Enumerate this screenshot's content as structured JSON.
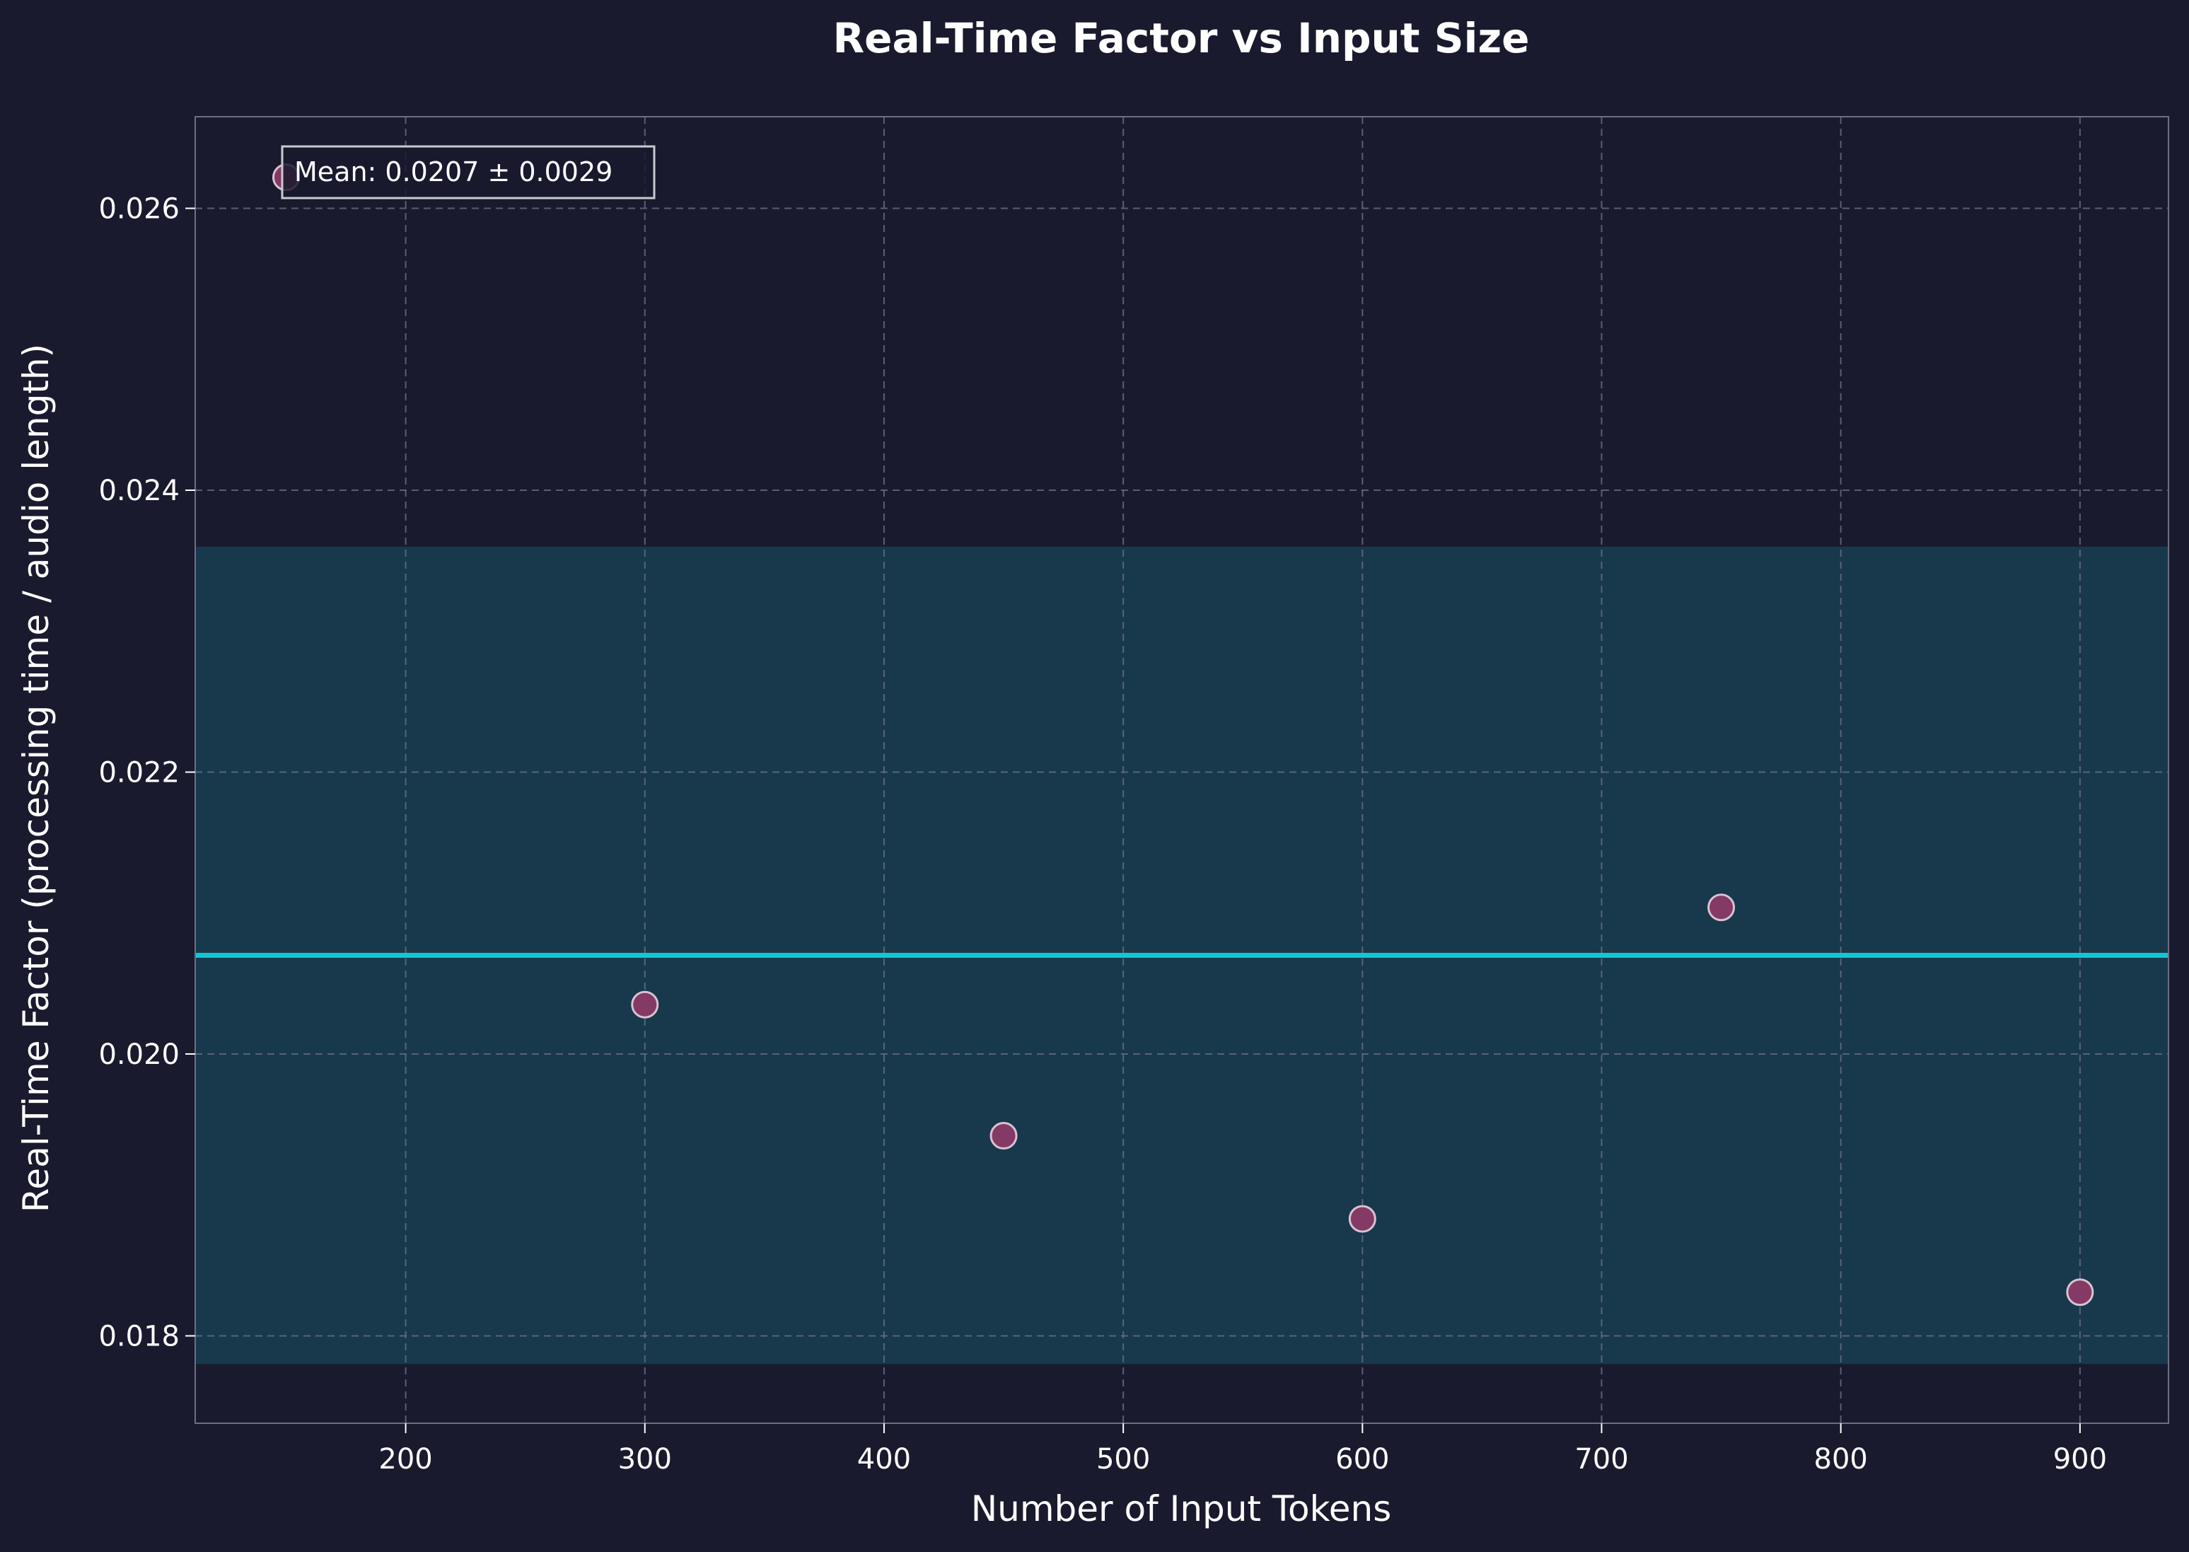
{
  "chart_data": {
    "type": "scatter",
    "title": "Real-Time Factor vs Input Size",
    "xlabel": "Number of Input Tokens",
    "ylabel": "Real-Time Factor (processing time / audio length)",
    "xlim": [
      112,
      937
    ],
    "ylim": [
      0.01738,
      0.02665
    ],
    "xticks": [
      200,
      300,
      400,
      500,
      600,
      700,
      800,
      900
    ],
    "yticks": [
      0.018,
      0.02,
      0.022,
      0.024,
      0.026
    ],
    "ytick_labels": [
      "0.018",
      "0.020",
      "0.022",
      "0.024",
      "0.026"
    ],
    "grid": true,
    "points": {
      "x": [
        150,
        300,
        450,
        600,
        750,
        900
      ],
      "y": [
        0.02622,
        0.02035,
        0.01942,
        0.01883,
        0.02104,
        0.01831
      ]
    },
    "mean_line": {
      "y": 0.0207
    },
    "band": {
      "low": 0.0178,
      "high": 0.0236
    },
    "annotation": "Mean: 0.0207 ± 0.0029",
    "colors": {
      "background": "#1a1a2e",
      "point_fill": "#8a3a66",
      "point_edge": "#d9c2d2",
      "mean_line": "#12c6d4",
      "band": "#17394b",
      "grid": "#6b6f82",
      "spine": "#6b6f82",
      "text": "#ffffff"
    }
  }
}
